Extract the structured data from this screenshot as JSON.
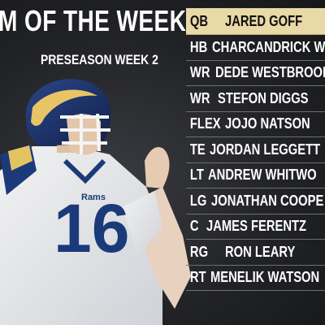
{
  "header": {
    "title": "M OF THE WEEK",
    "subtitle": "PRESEASON WEEK 2"
  },
  "photo": {
    "jersey_number": "16",
    "team_text": "Rams",
    "credit_line1": "Theaon M. Henderson/",
    "credit_line2": "Getty Images"
  },
  "roster": [
    {
      "pos": "QB",
      "name": "JARED GOFF"
    },
    {
      "pos": "HB",
      "name": "CHARCANDRICK W"
    },
    {
      "pos": "WR",
      "name": "DEDE WESTBROOK"
    },
    {
      "pos": "WR",
      "name": "STEFON DIGGS"
    },
    {
      "pos": "FLEX",
      "name": "JOJO NATSON"
    },
    {
      "pos": "TE",
      "name": "JORDAN LEGGETT"
    },
    {
      "pos": "LT",
      "name": "ANDREW WHITWO"
    },
    {
      "pos": "LG",
      "name": "JONATHAN COOPE"
    },
    {
      "pos": "C",
      "name": "JAMES FERENTZ"
    },
    {
      "pos": "RG",
      "name": "RON LEARY"
    },
    {
      "pos": "RT",
      "name": "MENELIK WATSON"
    }
  ],
  "colors": {
    "highlight": "#e9d9a6",
    "jersey_number": "#1b3a7a",
    "helmet": "#1b2f66"
  }
}
